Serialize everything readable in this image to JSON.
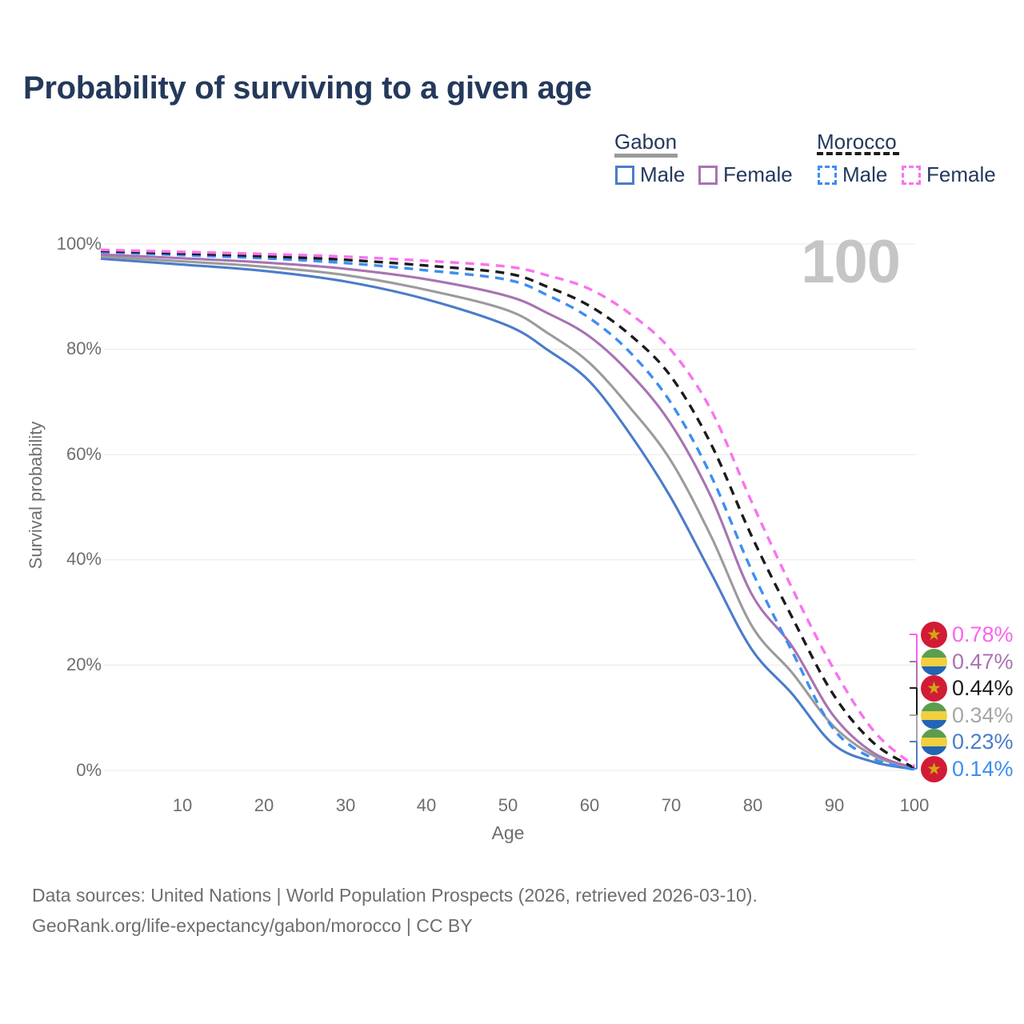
{
  "title": "Probability of surviving to a given age",
  "watermark_age": "100",
  "legend": {
    "groups": [
      {
        "label": "Gabon",
        "line_style": "solid",
        "line_color": "#9b9b9b",
        "items": [
          {
            "label": "Male",
            "color": "#4b7cc9",
            "style": "solid"
          },
          {
            "label": "Female",
            "color": "#a873b2",
            "style": "solid"
          }
        ]
      },
      {
        "label": "Morocco",
        "line_style": "dashed",
        "line_color": "#1b1b1b",
        "items": [
          {
            "label": "Male",
            "color": "#3d8ef2",
            "style": "dashed"
          },
          {
            "label": "Female",
            "color": "#f973ef",
            "style": "dashed"
          }
        ]
      }
    ]
  },
  "y_axis": {
    "label": "Survival probability",
    "ticks": [
      "0%",
      "20%",
      "40%",
      "60%",
      "80%",
      "100%"
    ]
  },
  "x_axis": {
    "label": "Age",
    "ticks": [
      "10",
      "20",
      "30",
      "40",
      "50",
      "60",
      "70",
      "80",
      "90",
      "100"
    ]
  },
  "end_labels": [
    {
      "value": "0.78%",
      "series": "Morocco Female",
      "flag": "morocco",
      "color": "#fb63ef"
    },
    {
      "value": "0.47%",
      "series": "Gabon Female",
      "flag": "gabon",
      "color": "#a873b2"
    },
    {
      "value": "0.44%",
      "series": "Morocco",
      "flag": "morocco",
      "color": "#1b1b1b"
    },
    {
      "value": "0.34%",
      "series": "Gabon",
      "flag": "gabon",
      "color": "#a6a6a6"
    },
    {
      "value": "0.23%",
      "series": "Gabon Male",
      "flag": "gabon",
      "color": "#4b7cc9"
    },
    {
      "value": "0.14%",
      "series": "Morocco Male",
      "flag": "morocco",
      "color": "#3d8ef2"
    }
  ],
  "footer": {
    "line1": "Data sources: United Nations | World Population Prospects (2026, retrieved 2026-03-10).",
    "line2": "GeoRank.org/life-expectancy/gabon/morocco | CC BY"
  },
  "colors": {
    "title_text": "#24395b",
    "axis_text": "#6e6e6e",
    "grid": "#e8e8e8",
    "watermark": "#c5c5c5",
    "gabon_male": "#4b7cc9",
    "gabon_all": "#9b9b9b",
    "gabon_female": "#a873b2",
    "morocco_male": "#3d8ef2",
    "morocco_all": "#1b1b1b",
    "morocco_female": "#f973ef",
    "morocco_flag_red": "#d21b35",
    "morocco_flag_star": "#cfa913",
    "gabon_flag_green": "#5b9e4d",
    "gabon_flag_yellow": "#f2cf41",
    "gabon_flag_blue": "#2264b6"
  },
  "chart_data": {
    "type": "line",
    "title": "Probability of surviving to a given age",
    "xlabel": "Age",
    "ylabel": "Survival probability",
    "xlim": [
      0,
      100
    ],
    "ylim": [
      0,
      100
    ],
    "y_unit": "%",
    "grid": "horizontal",
    "x": [
      0,
      10,
      20,
      30,
      40,
      50,
      55,
      60,
      65,
      70,
      75,
      80,
      85,
      90,
      95,
      100
    ],
    "series": [
      {
        "name": "Gabon Male",
        "country": "Gabon",
        "sex": "male",
        "style": "solid",
        "color": "#4b7cc9",
        "end_label": "0.23%",
        "values": [
          97.2,
          96.1,
          94.9,
          92.9,
          89.5,
          84.5,
          79.8,
          74.0,
          64.0,
          52.0,
          37.5,
          23.0,
          14.5,
          5.0,
          1.6,
          0.23
        ]
      },
      {
        "name": "Gabon",
        "country": "Gabon",
        "sex": "all",
        "style": "solid",
        "color": "#9b9b9b",
        "end_label": "0.34%",
        "values": [
          97.6,
          96.7,
          95.7,
          94.1,
          91.3,
          87.4,
          83.0,
          77.5,
          69.0,
          59.0,
          44.5,
          27.5,
          18.5,
          8.5,
          2.8,
          0.34
        ]
      },
      {
        "name": "Gabon Female",
        "country": "Gabon",
        "sex": "female",
        "style": "solid",
        "color": "#a873b2",
        "end_label": "0.47%",
        "values": [
          98.0,
          97.3,
          96.5,
          95.3,
          93.3,
          90.1,
          86.8,
          82.5,
          75.5,
          66.0,
          52.0,
          33.5,
          23.5,
          10.5,
          3.3,
          0.47
        ]
      },
      {
        "name": "Morocco Male",
        "country": "Morocco",
        "sex": "male",
        "style": "dashed",
        "color": "#3d8ef2",
        "end_label": "0.14%",
        "values": [
          98.5,
          97.9,
          97.3,
          96.4,
          95.0,
          93.2,
          90.2,
          86.0,
          79.5,
          70.0,
          56.0,
          38.0,
          22.5,
          8.0,
          2.2,
          0.14
        ]
      },
      {
        "name": "Morocco",
        "country": "Morocco",
        "sex": "all",
        "style": "dashed",
        "color": "#1b1b1b",
        "end_label": "0.44%",
        "values": [
          98.7,
          98.2,
          97.7,
          97.0,
          95.9,
          94.4,
          91.8,
          88.3,
          82.8,
          75.0,
          62.0,
          44.5,
          29.0,
          14.5,
          5.2,
          0.44
        ]
      },
      {
        "name": "Morocco Female",
        "country": "Morocco",
        "sex": "female",
        "style": "dashed",
        "color": "#f973ef",
        "end_label": "0.78%",
        "values": [
          98.9,
          98.5,
          98.1,
          97.6,
          96.8,
          95.7,
          94.0,
          91.5,
          86.8,
          80.0,
          68.5,
          51.0,
          34.5,
          19.5,
          7.5,
          0.78
        ]
      }
    ]
  }
}
